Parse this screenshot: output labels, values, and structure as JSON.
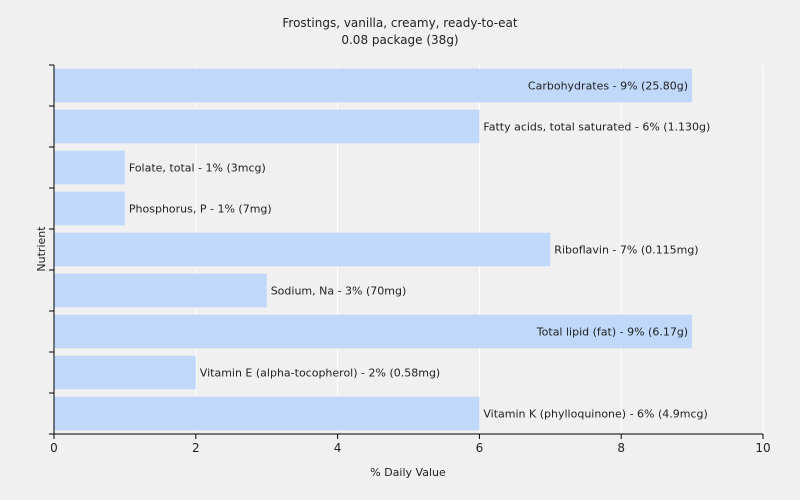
{
  "chart_data": {
    "type": "bar",
    "orientation": "horizontal",
    "title": "Frostings, vanilla, creamy, ready-to-eat",
    "subtitle": "0.08 package (38g)",
    "xlabel": "% Daily Value",
    "ylabel": "Nutrient",
    "xlim": [
      0,
      10
    ],
    "xticks": [
      0,
      2,
      4,
      6,
      8,
      10
    ],
    "grid": true,
    "bar_color": "#c0d9fb",
    "categories": [
      "Carbohydrates",
      "Fatty acids, total saturated",
      "Folate, total",
      "Phosphorus, P",
      "Riboflavin",
      "Sodium, Na",
      "Total lipid (fat)",
      "Vitamin E (alpha-tocopherol)",
      "Vitamin K (phylloquinone)"
    ],
    "values": [
      9,
      6,
      1,
      1,
      7,
      3,
      9,
      2,
      6
    ],
    "labels": [
      "Carbohydrates - 9% (25.80g)",
      "Fatty acids, total saturated - 6% (1.130g)",
      "Folate, total - 1% (3mcg)",
      "Phosphorus, P - 1% (7mg)",
      "Riboflavin - 7% (0.115mg)",
      "Sodium, Na - 3% (70mg)",
      "Total lipid (fat) - 9% (6.17g)",
      "Vitamin E (alpha-tocopherol) - 2% (0.58mg)",
      "Vitamin K (phylloquinone) - 6% (4.9mcg)"
    ]
  }
}
